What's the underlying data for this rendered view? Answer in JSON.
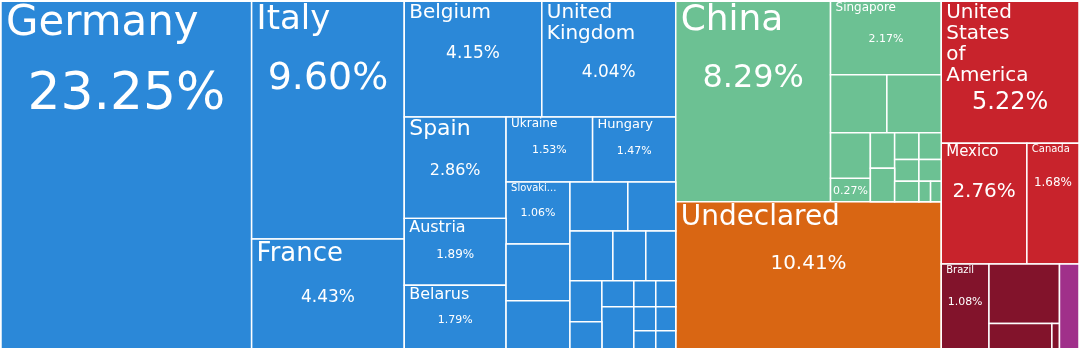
{
  "chart_data": {
    "type": "other",
    "categories": [
      "Germany",
      "Italy",
      "France",
      "Belgium",
      "United Kingdom",
      "Spain",
      "Ukraine",
      "Hungary",
      "Slovaki...",
      "Austria",
      "Belarus",
      "China",
      "Singapore",
      null,
      "Undeclared",
      "United States of America",
      "Mexico",
      "Canada",
      "Brazil",
      null,
      null,
      null,
      null,
      null,
      null,
      null,
      null,
      null,
      null,
      null,
      null,
      null,
      null,
      null,
      null,
      null,
      null,
      null,
      null,
      null,
      null,
      null,
      null,
      null,
      null,
      null,
      null,
      null,
      null,
      null,
      null,
      null
    ],
    "values": [
      23.25,
      9.6,
      4.43,
      4.15,
      4.04,
      2.86,
      1.53,
      1.47,
      1.06,
      1.89,
      1.79,
      8.29,
      2.17,
      null,
      10.41,
      5.22,
      2.76,
      1.68,
      1.08,
      null,
      null,
      null,
      null,
      null,
      null,
      null,
      null,
      null,
      null,
      null,
      null,
      null,
      null,
      null,
      null,
      null,
      null,
      null,
      null,
      null,
      null,
      null,
      null,
      null,
      null,
      null,
      null,
      null,
      null,
      null,
      null,
      null
    ],
    "value_labels": [
      "23.25%",
      "9.60%",
      "4.43%",
      "4.15%",
      "4.04%",
      "2.86%",
      "1.53%",
      "1.47%",
      "1.06%",
      "1.89%",
      "1.79%",
      "8.29%",
      "2.17%",
      "0.27%",
      "10.41%",
      "5.22%",
      "2.76%",
      "1.68%",
      "1.08%",
      null,
      null,
      null,
      null,
      null,
      null,
      null,
      null,
      null,
      null,
      null,
      null,
      null,
      null,
      null,
      null,
      null,
      null,
      null,
      null,
      null,
      null,
      null,
      null,
      null,
      null,
      null,
      null,
      null,
      null,
      null,
      null,
      null
    ],
    "colors": [
      "#2b88d8",
      "#2b88d8",
      "#2b88d8",
      "#2b88d8",
      "#2b88d8",
      "#2b88d8",
      "#2b88d8",
      "#2b88d8",
      "#2b88d8",
      "#2b88d8",
      "#2b88d8",
      "#6cc193",
      "#6cc193",
      "#6cc193",
      "#d96613",
      "#c8232c",
      "#c8232c",
      "#c8232c",
      "#82132b",
      "#2b88d8",
      "#2b88d8",
      "#2b88d8",
      "#2b88d8",
      "#2b88d8",
      "#2b88d8",
      "#2b88d8",
      "#2b88d8",
      "#2b88d8",
      "#2b88d8",
      "#2b88d8",
      "#2b88d8",
      "#2b88d8",
      "#2b88d8",
      "#2b88d8",
      "#2b88d8",
      "#2b88d8",
      "#6cc193",
      "#6cc193",
      "#6cc193",
      "#6cc193",
      "#6cc193",
      "#6cc193",
      "#6cc193",
      "#6cc193",
      "#6cc193",
      "#6cc193",
      "#6cc193",
      "#6cc193",
      "#82132b",
      "#82132b",
      "#82132b",
      "#a0308a"
    ]
  }
}
